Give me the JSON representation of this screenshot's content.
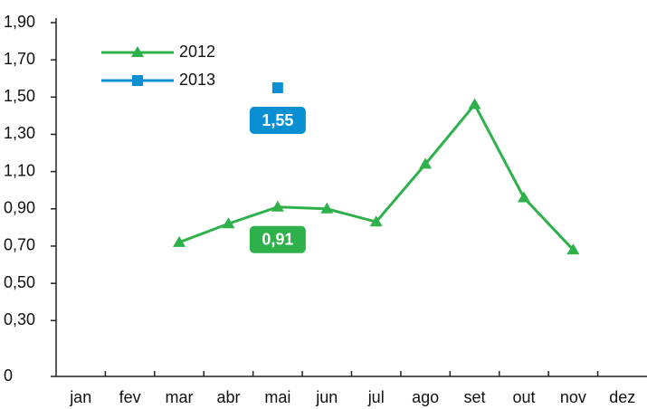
{
  "chart_data": {
    "type": "line",
    "categories": [
      "jan",
      "fev",
      "mar",
      "abr",
      "mai",
      "jun",
      "jul",
      "ago",
      "set",
      "out",
      "nov",
      "dez"
    ],
    "series": [
      {
        "name": "2012",
        "color": "#2eb04b",
        "marker": "triangle",
        "values": [
          null,
          null,
          0.72,
          0.82,
          0.91,
          0.9,
          0.83,
          1.14,
          1.46,
          0.96,
          0.68,
          null
        ],
        "value_labels": [
          null,
          null,
          null,
          null,
          "0,91",
          null,
          null,
          null,
          null,
          null,
          null,
          null
        ]
      },
      {
        "name": "2013",
        "color": "#0b8fd3",
        "marker": "square",
        "values": [
          null,
          null,
          null,
          null,
          1.55,
          null,
          null,
          null,
          null,
          null,
          null,
          null
        ],
        "value_labels": [
          null,
          null,
          null,
          null,
          "1,55",
          null,
          null,
          null,
          null,
          null,
          null,
          null
        ]
      }
    ],
    "ylim": [
      0,
      1.9
    ],
    "yticks": [
      0,
      {
        "value": 0.3,
        "label": "0,30"
      },
      {
        "value": 0.5,
        "label": "0,50"
      },
      {
        "value": 0.7,
        "label": "0,70"
      },
      {
        "value": 0.9,
        "label": "0,90"
      },
      {
        "value": 1.1,
        "label": "1,10"
      },
      {
        "value": 1.3,
        "label": "1,30"
      },
      {
        "value": 1.5,
        "label": "1,50"
      },
      {
        "value": 1.7,
        "label": "1,70"
      },
      {
        "value": 1.9,
        "label": "1,90"
      }
    ],
    "legend": "upper left"
  }
}
